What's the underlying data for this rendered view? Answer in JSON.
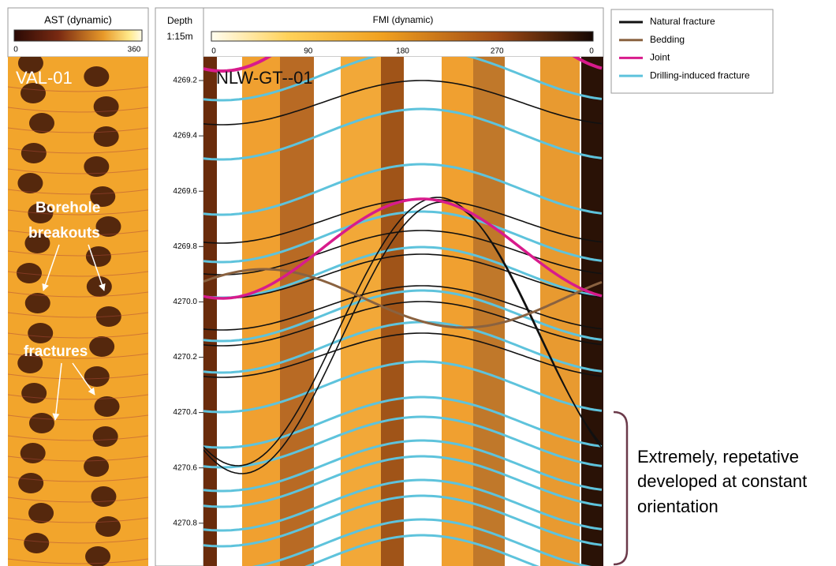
{
  "left_panel": {
    "title": "AST (dynamic)",
    "scale_min": "0",
    "scale_max": "360",
    "well": "VAL-01",
    "labels": [
      "Borehole",
      "breakouts",
      "fractures"
    ]
  },
  "right_panel": {
    "depth_title": "Depth",
    "depth_scale": "1:15m",
    "title": "FMI (dynamic)",
    "scale_labels": [
      "0",
      "90",
      "180",
      "270",
      "0"
    ],
    "well": "NLW-GT--01",
    "depth_ticks": [
      "4269.2",
      "4269.4",
      "4269.6",
      "4269.8",
      "4270.0",
      "4270.2",
      "4270.4",
      "4270.6",
      "4270.8"
    ]
  },
  "legend": [
    {
      "label": "Natural fracture",
      "color": "#111111"
    },
    {
      "label": "Bedding",
      "color": "#8a6240"
    },
    {
      "label": "Joint",
      "color": "#d81b8c"
    },
    {
      "label": "Drilling-induced fracture",
      "color": "#5ec3dc"
    }
  ],
  "annotation": [
    "Extremely, repetative",
    "developed at constant",
    "orientation"
  ]
}
